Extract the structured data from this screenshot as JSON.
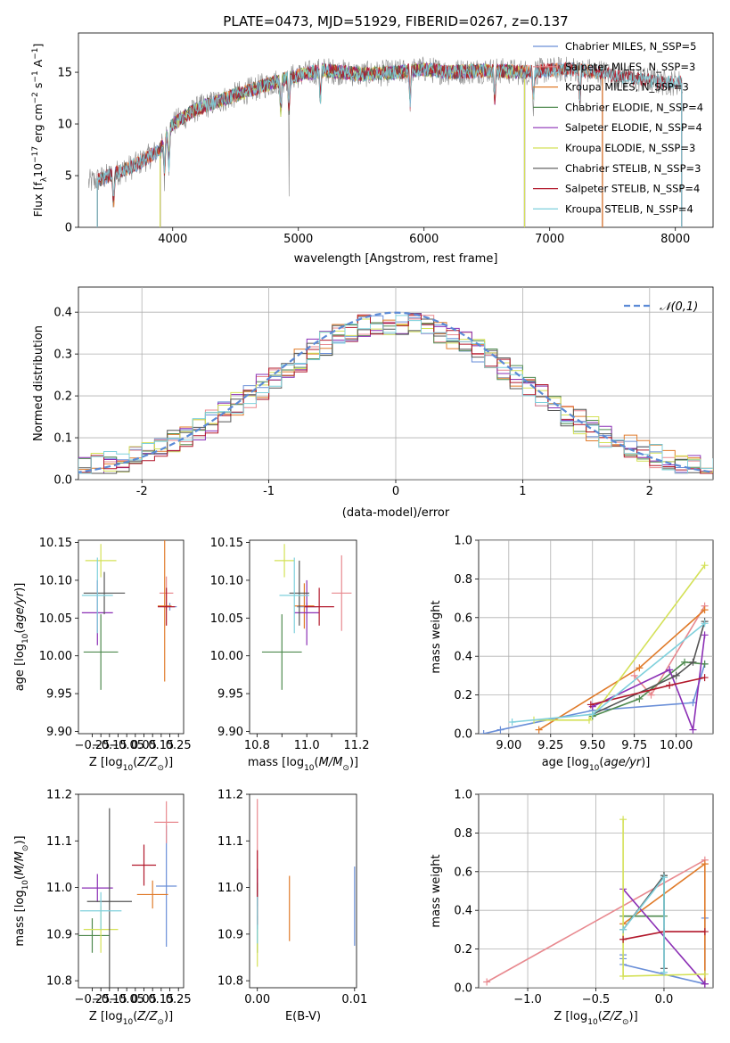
{
  "colors": [
    "#6a8fd8",
    "#e8898f",
    "#e07b2a",
    "#4f8a4f",
    "#8b2fb5",
    "#d4e157",
    "#555555",
    "#b2182b",
    "#7fd0dc"
  ],
  "chart_data": [
    {
      "id": "spectrum",
      "type": "line",
      "title": "PLATE=0473, MJD=51929, FIBERID=0267, z=0.137",
      "xlabel": "wavelength [Angstrom, rest frame]",
      "ylabel": "Flux [f_λ 10^-17 erg cm^-2 s^-1 A^-1]",
      "xlim": [
        3250,
        8300
      ],
      "ylim": [
        0,
        18.8
      ],
      "xticks": [
        4000,
        5000,
        6000,
        7000,
        8000
      ],
      "yticks": [
        0,
        5,
        10,
        15
      ],
      "legend_position": "right",
      "legend": [
        "Chabrier MILES, N_SSP=5",
        "Salpeter MILES, N_SSP=3",
        "Kroupa MILES, N_SSP=3",
        "Chabrier ELODIE, N_SSP=4",
        "Salpeter ELODIE, N_SSP=4",
        "Kroupa ELODIE, N_SSP=3",
        "Chabrier STELIB, N_SSP=3",
        "Salpeter STELIB, N_SSP=4",
        "Kroupa STELIB, N_SSP=4"
      ],
      "spectrum_envelope": {
        "x": [
          3330,
          3500,
          3700,
          3900,
          4000,
          4200,
          4500,
          4800,
          5000,
          5200,
          5500,
          5800,
          6000,
          6200,
          6500,
          6800,
          7000,
          7200,
          7400,
          7600,
          7900,
          8050
        ],
        "y": [
          4.3,
          5.0,
          6.0,
          7.5,
          10.0,
          11.5,
          12.8,
          14.0,
          14.7,
          15.2,
          14.8,
          15.0,
          15.3,
          15.0,
          15.2,
          15.0,
          15.2,
          15.3,
          15.0,
          14.5,
          14.0,
          14.0
        ]
      },
      "absorption_lines": [
        3530,
        3935,
        3970,
        4861,
        4925,
        5175,
        5890,
        6563,
        6870,
        7240
      ],
      "model_wavelength_ranges": [
        [
          3400,
          7420
        ],
        [
          3400,
          7420
        ],
        [
          3400,
          7420
        ],
        [
          3900,
          6800
        ],
        [
          3900,
          6800
        ],
        [
          3900,
          6800
        ],
        [
          3400,
          8050
        ],
        [
          3400,
          8050
        ],
        [
          3400,
          8050
        ]
      ]
    },
    {
      "id": "residual_histogram",
      "type": "histogram",
      "xlabel": "(data-model)/error",
      "ylabel": "Normed distribution",
      "xlim": [
        -2.5,
        2.5
      ],
      "ylim": [
        0,
        0.46
      ],
      "xticks": [
        -2,
        -1,
        0,
        1,
        2
      ],
      "yticks": [
        0.0,
        0.1,
        0.2,
        0.3,
        0.4
      ],
      "grid": true,
      "legend_position": "top-right",
      "reference_curve": {
        "label": "𝒩(0,1)",
        "style": "dashed",
        "color": "#5b8ad6",
        "mean": 0,
        "sigma": 1
      },
      "bin_width": 0.1
    },
    {
      "id": "age_vs_Z",
      "type": "errorbar",
      "xlabel": "Z [log10(Z/Z⊙)]",
      "ylabel": "age  [log10(age/yr)]",
      "xlim": [
        -0.33,
        0.28
      ],
      "ylim": [
        9.897,
        10.153
      ],
      "xticks": [
        -0.25,
        -0.2,
        -0.15,
        -0.1,
        -0.05,
        0.0,
        0.05,
        0.1,
        0.15,
        0.2,
        0.25
      ],
      "xticklabels": [
        "−0.25",
        "",
        "−0.15",
        "",
        "−0.05",
        "",
        "0.05",
        "",
        "0.15",
        "",
        "0.25"
      ],
      "yticks": [
        9.9,
        9.95,
        10.0,
        10.05,
        10.1,
        10.15
      ],
      "points": [
        {
          "x": 0.2,
          "xerr": 0.04,
          "y": 10.065,
          "yerr": 0.005
        },
        {
          "x": 0.18,
          "xerr": 0.04,
          "y": 10.083,
          "yerr": 0.022
        },
        {
          "x": 0.17,
          "xerr": 0.04,
          "y": 10.066,
          "yerr": 0.1
        },
        {
          "x": -0.2,
          "xerr": 0.1,
          "y": 10.005,
          "yerr": 0.05
        },
        {
          "x": -0.22,
          "xerr": 0.09,
          "y": 10.057,
          "yerr": 0.043
        },
        {
          "x": -0.2,
          "xerr": 0.09,
          "y": 10.126,
          "yerr": 0.022
        },
        {
          "x": -0.18,
          "xerr": 0.12,
          "y": 10.083,
          "yerr": 0.028
        },
        {
          "x": 0.18,
          "xerr": 0.05,
          "y": 10.065,
          "yerr": 0.025
        },
        {
          "x": -0.22,
          "xerr": 0.09,
          "y": 10.08,
          "yerr": 0.05
        }
      ]
    },
    {
      "id": "age_vs_mass",
      "type": "errorbar",
      "xlabel": "mass [log10(M/M⊙)]",
      "ylabel": "",
      "xlim": [
        10.77,
        11.2
      ],
      "ylim": [
        9.897,
        10.153
      ],
      "xticks": [
        10.8,
        10.9,
        11.0,
        11.1,
        11.2
      ],
      "xticklabels": [
        "10.8",
        "",
        "11.0",
        "",
        "11.2"
      ],
      "yticks": [
        9.9,
        9.95,
        10.0,
        10.05,
        10.1,
        10.15
      ],
      "points": [
        {
          "x": 11.0,
          "xerr": 0.04,
          "y": 10.065,
          "yerr": 0.005
        },
        {
          "x": 11.14,
          "xerr": 0.04,
          "y": 10.083,
          "yerr": 0.05
        },
        {
          "x": 10.99,
          "xerr": 0.04,
          "y": 10.066,
          "yerr": 0.03
        },
        {
          "x": 10.9,
          "xerr": 0.08,
          "y": 10.005,
          "yerr": 0.05
        },
        {
          "x": 11.0,
          "xerr": 0.05,
          "y": 10.057,
          "yerr": 0.043
        },
        {
          "x": 10.91,
          "xerr": 0.04,
          "y": 10.126,
          "yerr": 0.022
        },
        {
          "x": 10.97,
          "xerr": 0.04,
          "y": 10.083,
          "yerr": 0.043
        },
        {
          "x": 11.05,
          "xerr": 0.06,
          "y": 10.065,
          "yerr": 0.025
        },
        {
          "x": 10.95,
          "xerr": 0.06,
          "y": 10.08,
          "yerr": 0.05
        }
      ]
    },
    {
      "id": "weight_vs_age",
      "type": "line",
      "xlabel": "age  [log10(age/yr)]",
      "ylabel": "mass weight",
      "xlim": [
        8.82,
        10.22
      ],
      "ylim": [
        0,
        1
      ],
      "xticks": [
        9.0,
        9.25,
        9.5,
        9.75,
        10.0
      ],
      "yticks": [
        0.0,
        0.2,
        0.4,
        0.6,
        0.8,
        1.0
      ],
      "grid": true,
      "series": [
        {
          "x": [
            8.85,
            8.95,
            9.5,
            10.1,
            10.17
          ],
          "y": [
            0.0,
            0.02,
            0.12,
            0.16,
            0.36
          ]
        },
        {
          "x": [
            9.75,
            9.85,
            10.17
          ],
          "y": [
            0.3,
            0.2,
            0.66
          ]
        },
        {
          "x": [
            9.18,
            9.78,
            10.17
          ],
          "y": [
            0.02,
            0.34,
            0.64
          ]
        },
        {
          "x": [
            9.5,
            9.78,
            10.05,
            10.17
          ],
          "y": [
            0.09,
            0.18,
            0.37,
            0.36
          ]
        },
        {
          "x": [
            9.5,
            9.96,
            10.1,
            10.17
          ],
          "y": [
            0.14,
            0.33,
            0.02,
            0.51
          ]
        },
        {
          "x": [
            9.15,
            9.48,
            10.17
          ],
          "y": [
            0.07,
            0.07,
            0.87
          ]
        },
        {
          "x": [
            9.5,
            10.0,
            10.1,
            10.17
          ],
          "y": [
            0.1,
            0.3,
            0.37,
            0.58
          ]
        },
        {
          "x": [
            9.49,
            9.96,
            10.17
          ],
          "y": [
            0.15,
            0.25,
            0.29
          ]
        },
        {
          "x": [
            9.02,
            9.5,
            10.17
          ],
          "y": [
            0.06,
            0.1,
            0.57
          ]
        }
      ]
    },
    {
      "id": "mass_vs_Z",
      "type": "errorbar",
      "xlabel": "Z [log10(Z/Z⊙)]",
      "ylabel": "mass [log10(M/M⊙)]",
      "xlim": [
        -0.33,
        0.28
      ],
      "ylim": [
        10.785,
        11.2
      ],
      "xticks": [
        -0.25,
        -0.2,
        -0.15,
        -0.1,
        -0.05,
        0.0,
        0.05,
        0.1,
        0.15,
        0.2,
        0.25
      ],
      "xticklabels": [
        "−0.25",
        "",
        "−0.15",
        "",
        "−0.05",
        "",
        "0.05",
        "",
        "0.15",
        "",
        "0.25"
      ],
      "yticks": [
        10.8,
        10.9,
        11.0,
        11.1,
        11.2
      ],
      "points": [
        {
          "x": 0.18,
          "xerr": 0.06,
          "y": 11.003,
          "yerr": 0.13
        },
        {
          "x": 0.18,
          "xerr": 0.07,
          "y": 11.14,
          "yerr": 0.045
        },
        {
          "x": 0.1,
          "xerr": 0.09,
          "y": 10.985,
          "yerr": 0.03
        },
        {
          "x": -0.25,
          "xerr": 0.1,
          "y": 10.897,
          "yerr": 0.037
        },
        {
          "x": -0.22,
          "xerr": 0.09,
          "y": 10.999,
          "yerr": 0.03
        },
        {
          "x": -0.2,
          "xerr": 0.1,
          "y": 10.91,
          "yerr": 0.05
        },
        {
          "x": -0.15,
          "xerr": 0.13,
          "y": 10.97,
          "yerr": 0.2
        },
        {
          "x": 0.05,
          "xerr": 0.07,
          "y": 11.048,
          "yerr": 0.044
        },
        {
          "x": -0.2,
          "xerr": 0.12,
          "y": 10.95,
          "yerr": 0.04
        }
      ]
    },
    {
      "id": "mass_vs_EBV",
      "type": "errorbar",
      "xlabel": "E(B-V)",
      "ylabel": "",
      "xlim": [
        -0.0008,
        0.0102
      ],
      "ylim": [
        10.785,
        11.2
      ],
      "xticks": [
        0.0,
        0.01
      ],
      "yticks": [
        10.8,
        10.9,
        11.0,
        11.1,
        11.2
      ],
      "points": [
        {
          "x": 0.01,
          "xerr": 0,
          "y": 10.96,
          "yerr": 0.085
        },
        {
          "x": 0.0,
          "xerr": 0,
          "y": 11.09,
          "yerr": 0.1
        },
        {
          "x": 0.0033,
          "xerr": 0,
          "y": 10.955,
          "yerr": 0.07
        },
        {
          "x": 0.0,
          "xerr": 0,
          "y": 10.9,
          "yerr": 0.04
        },
        {
          "x": 0.0,
          "xerr": 0,
          "y": 11.0,
          "yerr": 0.04
        },
        {
          "x": 0.0,
          "xerr": 0,
          "y": 10.87,
          "yerr": 0.04
        },
        {
          "x": 0.0,
          "xerr": 0,
          "y": 10.97,
          "yerr": 0.04
        },
        {
          "x": 0.0,
          "xerr": 0,
          "y": 11.0,
          "yerr": 0.08
        },
        {
          "x": 0.0,
          "xerr": 0,
          "y": 10.93,
          "yerr": 0.05
        }
      ]
    },
    {
      "id": "weight_vs_Z",
      "type": "line",
      "xlabel": "Z [log10(Z/Z⊙)]",
      "ylabel": "mass weight",
      "xlim": [
        -1.36,
        0.36
      ],
      "ylim": [
        0,
        1
      ],
      "xticks": [
        -1.0,
        -0.5,
        0.0
      ],
      "xticklabels": [
        "−1.0",
        "−0.5",
        "0.0"
      ],
      "yticks": [
        0.0,
        0.2,
        0.4,
        0.6,
        0.8,
        1.0
      ],
      "grid": true,
      "series": [
        {
          "x": [
            -0.3,
            -0.3,
            -0.3,
            0.3,
            0.3
          ],
          "y": [
            0.17,
            0.15,
            0.12,
            0.02,
            0.36
          ]
        },
        {
          "x": [
            -1.3,
            0.3
          ],
          "y": [
            0.03,
            0.66
          ]
        },
        {
          "x": [
            -0.3,
            0.3,
            0.3
          ],
          "y": [
            0.33,
            0.64,
            0.02
          ]
        },
        {
          "x": [
            -0.3,
            0.0,
            0.0
          ],
          "y": [
            0.37,
            0.37,
            0.58
          ]
        },
        {
          "x": [
            -0.3,
            0.3,
            0.3
          ],
          "y": [
            0.51,
            0.02,
            0.02
          ]
        },
        {
          "x": [
            -0.3,
            -0.3,
            0.3
          ],
          "y": [
            0.87,
            0.06,
            0.07
          ]
        },
        {
          "x": [
            -0.3,
            0.0,
            0.0
          ],
          "y": [
            0.3,
            0.58,
            0.1
          ]
        },
        {
          "x": [
            -0.3,
            0.0,
            0.3
          ],
          "y": [
            0.25,
            0.29,
            0.29
          ]
        },
        {
          "x": [
            -0.3,
            0.0,
            0.0
          ],
          "y": [
            0.3,
            0.57,
            0.08
          ]
        }
      ]
    }
  ]
}
